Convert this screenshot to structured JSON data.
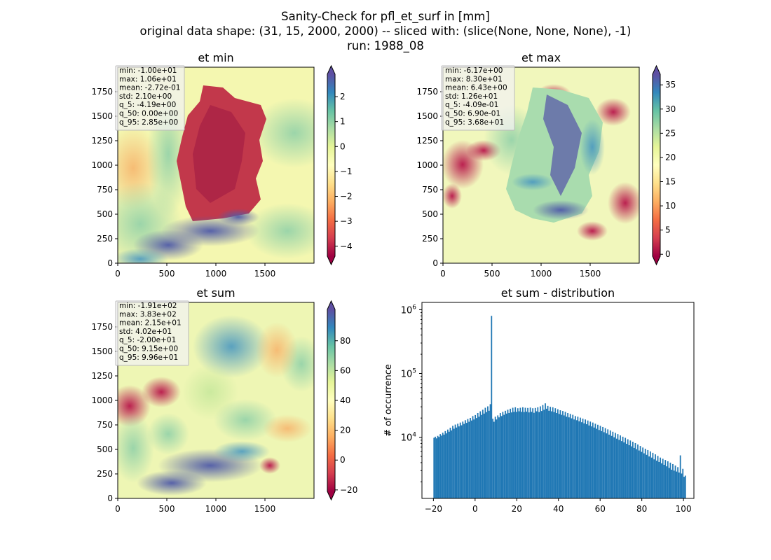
{
  "figure": {
    "title_line1": "Sanity-Check for pfl_et_surf in [mm]",
    "title_line2": "original data shape: (31, 15, 2000, 2000) -- sliced with: (slice(None, None, None), -1)",
    "title_line3": "run: 1988_08"
  },
  "chart_data": [
    {
      "type": "heatmap",
      "title": "et min",
      "xlim": [
        0,
        2000
      ],
      "ylim": [
        0,
        2000
      ],
      "x_ticks": [
        0,
        500,
        1000,
        1500
      ],
      "y_ticks": [
        0,
        250,
        500,
        750,
        1000,
        1250,
        1500,
        1750
      ],
      "colormap": "Spectral",
      "colorbar": {
        "range": [
          -4.4,
          2.9
        ],
        "ticks": [
          -4,
          -3,
          -2,
          -1,
          0,
          1,
          2
        ],
        "extend": "both"
      },
      "stats_text": [
        "min: -1.00e+01",
        "max: 1.06e+01",
        "mean: -2.72e-01",
        "std: 2.10e+00",
        "q_5: -4.19e+00",
        "q_50: 0.00e+00",
        "q_95: 2.85e+00"
      ]
    },
    {
      "type": "heatmap",
      "title": "et max",
      "xlim": [
        0,
        2000
      ],
      "ylim": [
        0,
        2000
      ],
      "x_ticks": [
        0,
        500,
        1000,
        1500
      ],
      "y_ticks": [
        0,
        250,
        500,
        750,
        1000,
        1250,
        1500,
        1750
      ],
      "colormap": "Spectral",
      "colorbar": {
        "range": [
          -0.4,
          37.2
        ],
        "ticks": [
          0,
          5,
          10,
          15,
          20,
          25,
          30,
          35
        ],
        "extend": "both"
      },
      "stats_text": [
        "min: -6.17e+00",
        "max: 8.30e+01",
        "mean: 6.43e+00",
        "std: 1.26e+01",
        "q_5: -4.09e-01",
        "q_50: 6.90e-01",
        "q_95: 3.68e+01"
      ]
    },
    {
      "type": "heatmap",
      "title": "et sum",
      "xlim": [
        0,
        2000
      ],
      "ylim": [
        0,
        2000
      ],
      "x_ticks": [
        0,
        500,
        1000,
        1500
      ],
      "y_ticks": [
        0,
        250,
        500,
        750,
        1000,
        1250,
        1500,
        1750
      ],
      "colormap": "Spectral",
      "colorbar": {
        "range": [
          -21,
          101
        ],
        "ticks": [
          -20,
          0,
          20,
          40,
          60,
          80
        ],
        "extend": "both"
      },
      "stats_text": [
        "min: -1.91e+02",
        "max: 3.83e+02",
        "mean: 2.15e+01",
        "std: 4.02e+01",
        "q_5: -2.00e+01",
        "q_50: 9.15e+00",
        "q_95: 9.96e+01"
      ]
    },
    {
      "type": "bar",
      "title": "et sum - distribution",
      "xlabel": "",
      "ylabel": "# of occurrence",
      "xlim": [
        -25.5,
        105
      ],
      "x_ticks": [
        -20,
        0,
        20,
        40,
        60,
        80,
        100
      ],
      "ylim": [
        1100,
        1300000
      ],
      "yscale": "log",
      "y_ticks": [
        {
          "value": 10000,
          "label": "10^4"
        },
        {
          "value": 100000,
          "label": "10^5"
        },
        {
          "value": 1000000,
          "label": "10^6"
        }
      ],
      "bins": {
        "start": -20,
        "end": 100,
        "count": 200
      },
      "counts": [
        9800,
        10200,
        9600,
        10500,
        10100,
        11200,
        10600,
        11800,
        11000,
        12500,
        11500,
        13200,
        12200,
        14100,
        12800,
        15100,
        13600,
        15800,
        14200,
        16300,
        14800,
        17000,
        15400,
        17600,
        16200,
        18500,
        16800,
        19300,
        17500,
        20100,
        18300,
        21500,
        19000,
        22300,
        20000,
        24000,
        21000,
        25500,
        22400,
        27000,
        23500,
        29000,
        24800,
        30500,
        26000,
        33000,
        800000,
        19500,
        17500,
        21000,
        19000,
        22000,
        20500,
        24000,
        21500,
        25000,
        22500,
        26000,
        23500,
        27000,
        24000,
        28000,
        24500,
        29000,
        25000,
        29500,
        25000,
        28500,
        25500,
        29000,
        25000,
        29500,
        24800,
        29000,
        25200,
        28800,
        24500,
        29200,
        25000,
        28500,
        24200,
        28800,
        25500,
        29500,
        24800,
        30500,
        25800,
        32000,
        27000,
        34000,
        28000,
        31000,
        26000,
        30000,
        25500,
        29500,
        24800,
        28500,
        24000,
        27500,
        23200,
        26500,
        22500,
        25800,
        22000,
        25000,
        21000,
        24000,
        20500,
        23200,
        19800,
        22500,
        19000,
        21500,
        18500,
        21000,
        17800,
        20300,
        17200,
        19600,
        16500,
        19000,
        16000,
        18300,
        15300,
        17600,
        14800,
        17000,
        14200,
        16300,
        13600,
        15700,
        13000,
        15100,
        12500,
        14500,
        12000,
        13900,
        11500,
        13300,
        11000,
        12800,
        10500,
        12200,
        10000,
        11700,
        9500,
        11200,
        9100,
        10700,
        8700,
        10200,
        8300,
        9800,
        7900,
        9300,
        7500,
        8900,
        7200,
        8500,
        6800,
        8100,
        6500,
        7700,
        6200,
        7300,
        5900,
        6900,
        5600,
        6600,
        5300,
        6300,
        5000,
        6000,
        4800,
        5700,
        4500,
        5400,
        4300,
        5100,
        4100,
        4800,
        3900,
        4600,
        3700,
        4400,
        3500,
        4200,
        3300,
        4000,
        3100,
        3800,
        3000,
        3600,
        2900,
        3400,
        2800,
        5200,
        2700,
        3200,
        2400,
        2500
      ]
    }
  ]
}
